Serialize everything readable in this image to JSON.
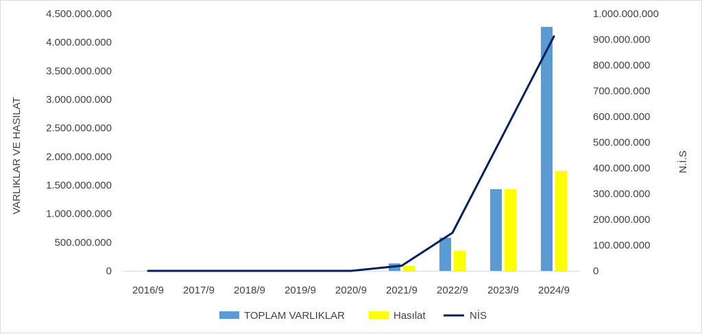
{
  "chart_data": {
    "type": "bar",
    "categories": [
      "2016/9",
      "2017/9",
      "2018/9",
      "2019/9",
      "2020/9",
      "2021/9",
      "2022/9",
      "2023/9",
      "2024/9"
    ],
    "series": [
      {
        "name": "TOPLAM VARLIKLAR",
        "type": "bar",
        "axis": "left",
        "color": "#5B9BD5",
        "values": [
          0,
          0,
          0,
          0,
          0,
          130000000,
          580000000,
          1430000000,
          4270000000
        ]
      },
      {
        "name": "Hasılat",
        "type": "bar",
        "axis": "left",
        "color": "#FFFF00",
        "values": [
          0,
          0,
          0,
          0,
          0,
          90000000,
          350000000,
          1430000000,
          1750000000
        ]
      },
      {
        "name": "NİS",
        "type": "line",
        "axis": "right",
        "color": "#002060",
        "values": [
          0,
          0,
          0,
          0,
          0,
          20000000,
          148000000,
          530000000,
          912000000
        ]
      }
    ],
    "ylabel": "VARLIKLAR VE HASILAT",
    "y2label": "N.İ.S",
    "ylim": [
      0,
      4500000000
    ],
    "y2lim": [
      0,
      1000000000
    ],
    "yticks": [
      "0",
      "500.000.000",
      "1.000.000.000",
      "1.500.000.000",
      "2.000.000.000",
      "2.500.000.000",
      "3.000.000.000",
      "3.500.000.000",
      "4.000.000.000",
      "4.500.000.000"
    ],
    "y2ticks": [
      "0",
      "100.000.000",
      "200.000.000",
      "300.000.000",
      "400.000.000",
      "500.000.000",
      "600.000.000",
      "700.000.000",
      "800.000.000",
      "900.000.000",
      "1.000.000.000"
    ],
    "grid": false,
    "legend_position": "bottom"
  }
}
